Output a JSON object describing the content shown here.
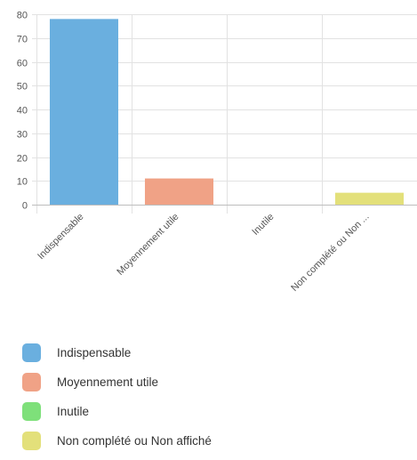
{
  "chart_data": {
    "type": "bar",
    "categories": [
      "Indispensable",
      "Moyennement utile",
      "Inutile",
      "Non complété ou Non ..."
    ],
    "values": [
      78,
      11,
      0,
      5
    ],
    "colors": [
      "#6aafdf",
      "#f0a286",
      "#7ee07a",
      "#e3e07a"
    ],
    "ylim": [
      0,
      80
    ],
    "yticks": [
      "0",
      "10",
      "20",
      "30",
      "40",
      "50",
      "60",
      "70",
      "80"
    ],
    "grid": true,
    "legend_position": "bottom-left"
  },
  "legend": {
    "items": [
      {
        "label": "Indispensable",
        "color": "#6aafdf"
      },
      {
        "label": "Moyennement utile",
        "color": "#f0a286"
      },
      {
        "label": "Inutile",
        "color": "#7ee07a"
      },
      {
        "label": "Non complété ou Non affiché",
        "color": "#e3e07a"
      }
    ]
  }
}
